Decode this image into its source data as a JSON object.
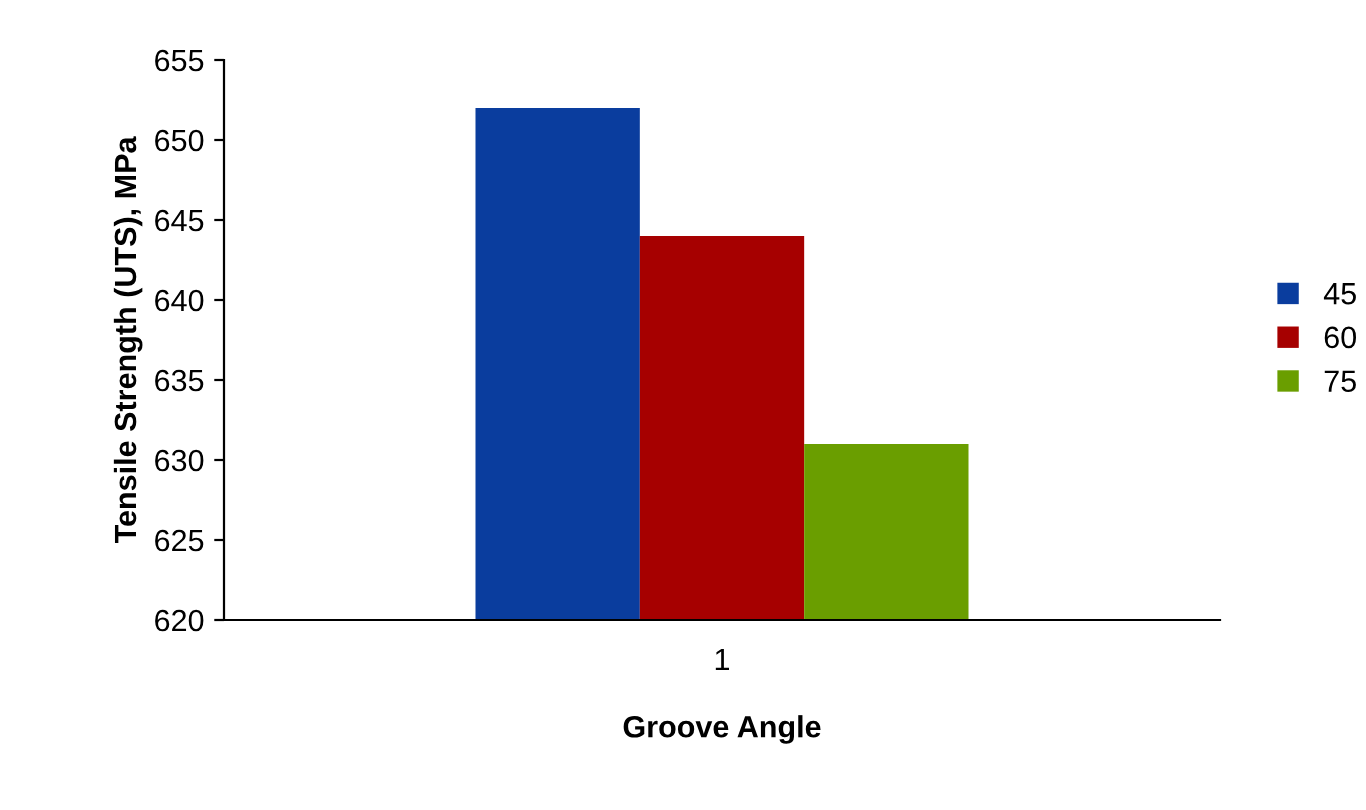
{
  "chart_data": {
    "type": "bar",
    "xlabel": "Groove Angle",
    "ylabel": "Tensile Strength (UTS), MPa",
    "categories": [
      "1"
    ],
    "series": [
      {
        "name": "45",
        "color": "#0a3d9e",
        "values": [
          652
        ]
      },
      {
        "name": "60",
        "color": "#a60000",
        "values": [
          644
        ]
      },
      {
        "name": "75",
        "color": "#6a9e00",
        "values": [
          631
        ]
      }
    ],
    "ylim": [
      620,
      655
    ],
    "yticks": [
      620,
      625,
      630,
      635,
      640,
      645,
      650,
      655
    ],
    "grid": false,
    "legend": "right"
  }
}
